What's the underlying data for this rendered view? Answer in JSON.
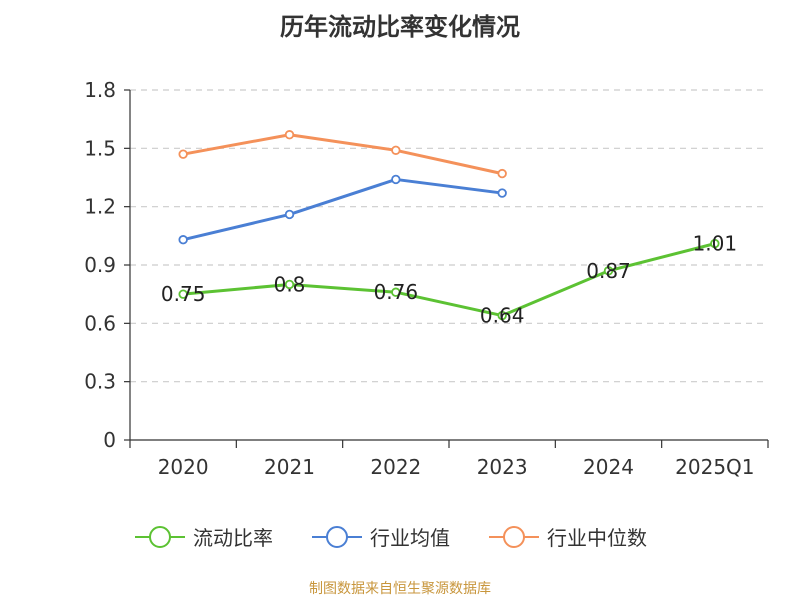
{
  "chart_data": {
    "type": "line",
    "title": "历年流动比率变化情况",
    "categories": [
      "2020",
      "2021",
      "2022",
      "2023",
      "2024",
      "2025Q1"
    ],
    "y_ticks": [
      "0",
      "0.3",
      "0.6",
      "0.9",
      "1.2",
      "1.5",
      "1.8"
    ],
    "ylim": [
      0,
      1.8
    ],
    "grid": true,
    "legend_position": "bottom",
    "series": [
      {
        "name": "流动比率",
        "color": "#5cc233",
        "values": [
          0.75,
          0.8,
          0.76,
          0.64,
          0.87,
          1.01
        ],
        "labels": [
          "0.75",
          "0.8",
          "0.76",
          "0.64",
          "0.87",
          "1.01"
        ]
      },
      {
        "name": "行业均值",
        "color": "#4a7fd4",
        "values": [
          1.03,
          1.16,
          1.34,
          1.27,
          null,
          null
        ]
      },
      {
        "name": "行业中位数",
        "color": "#f4915a",
        "values": [
          1.47,
          1.57,
          1.49,
          1.37,
          null,
          null
        ]
      }
    ]
  },
  "source": "制图数据来自恒生聚源数据库"
}
